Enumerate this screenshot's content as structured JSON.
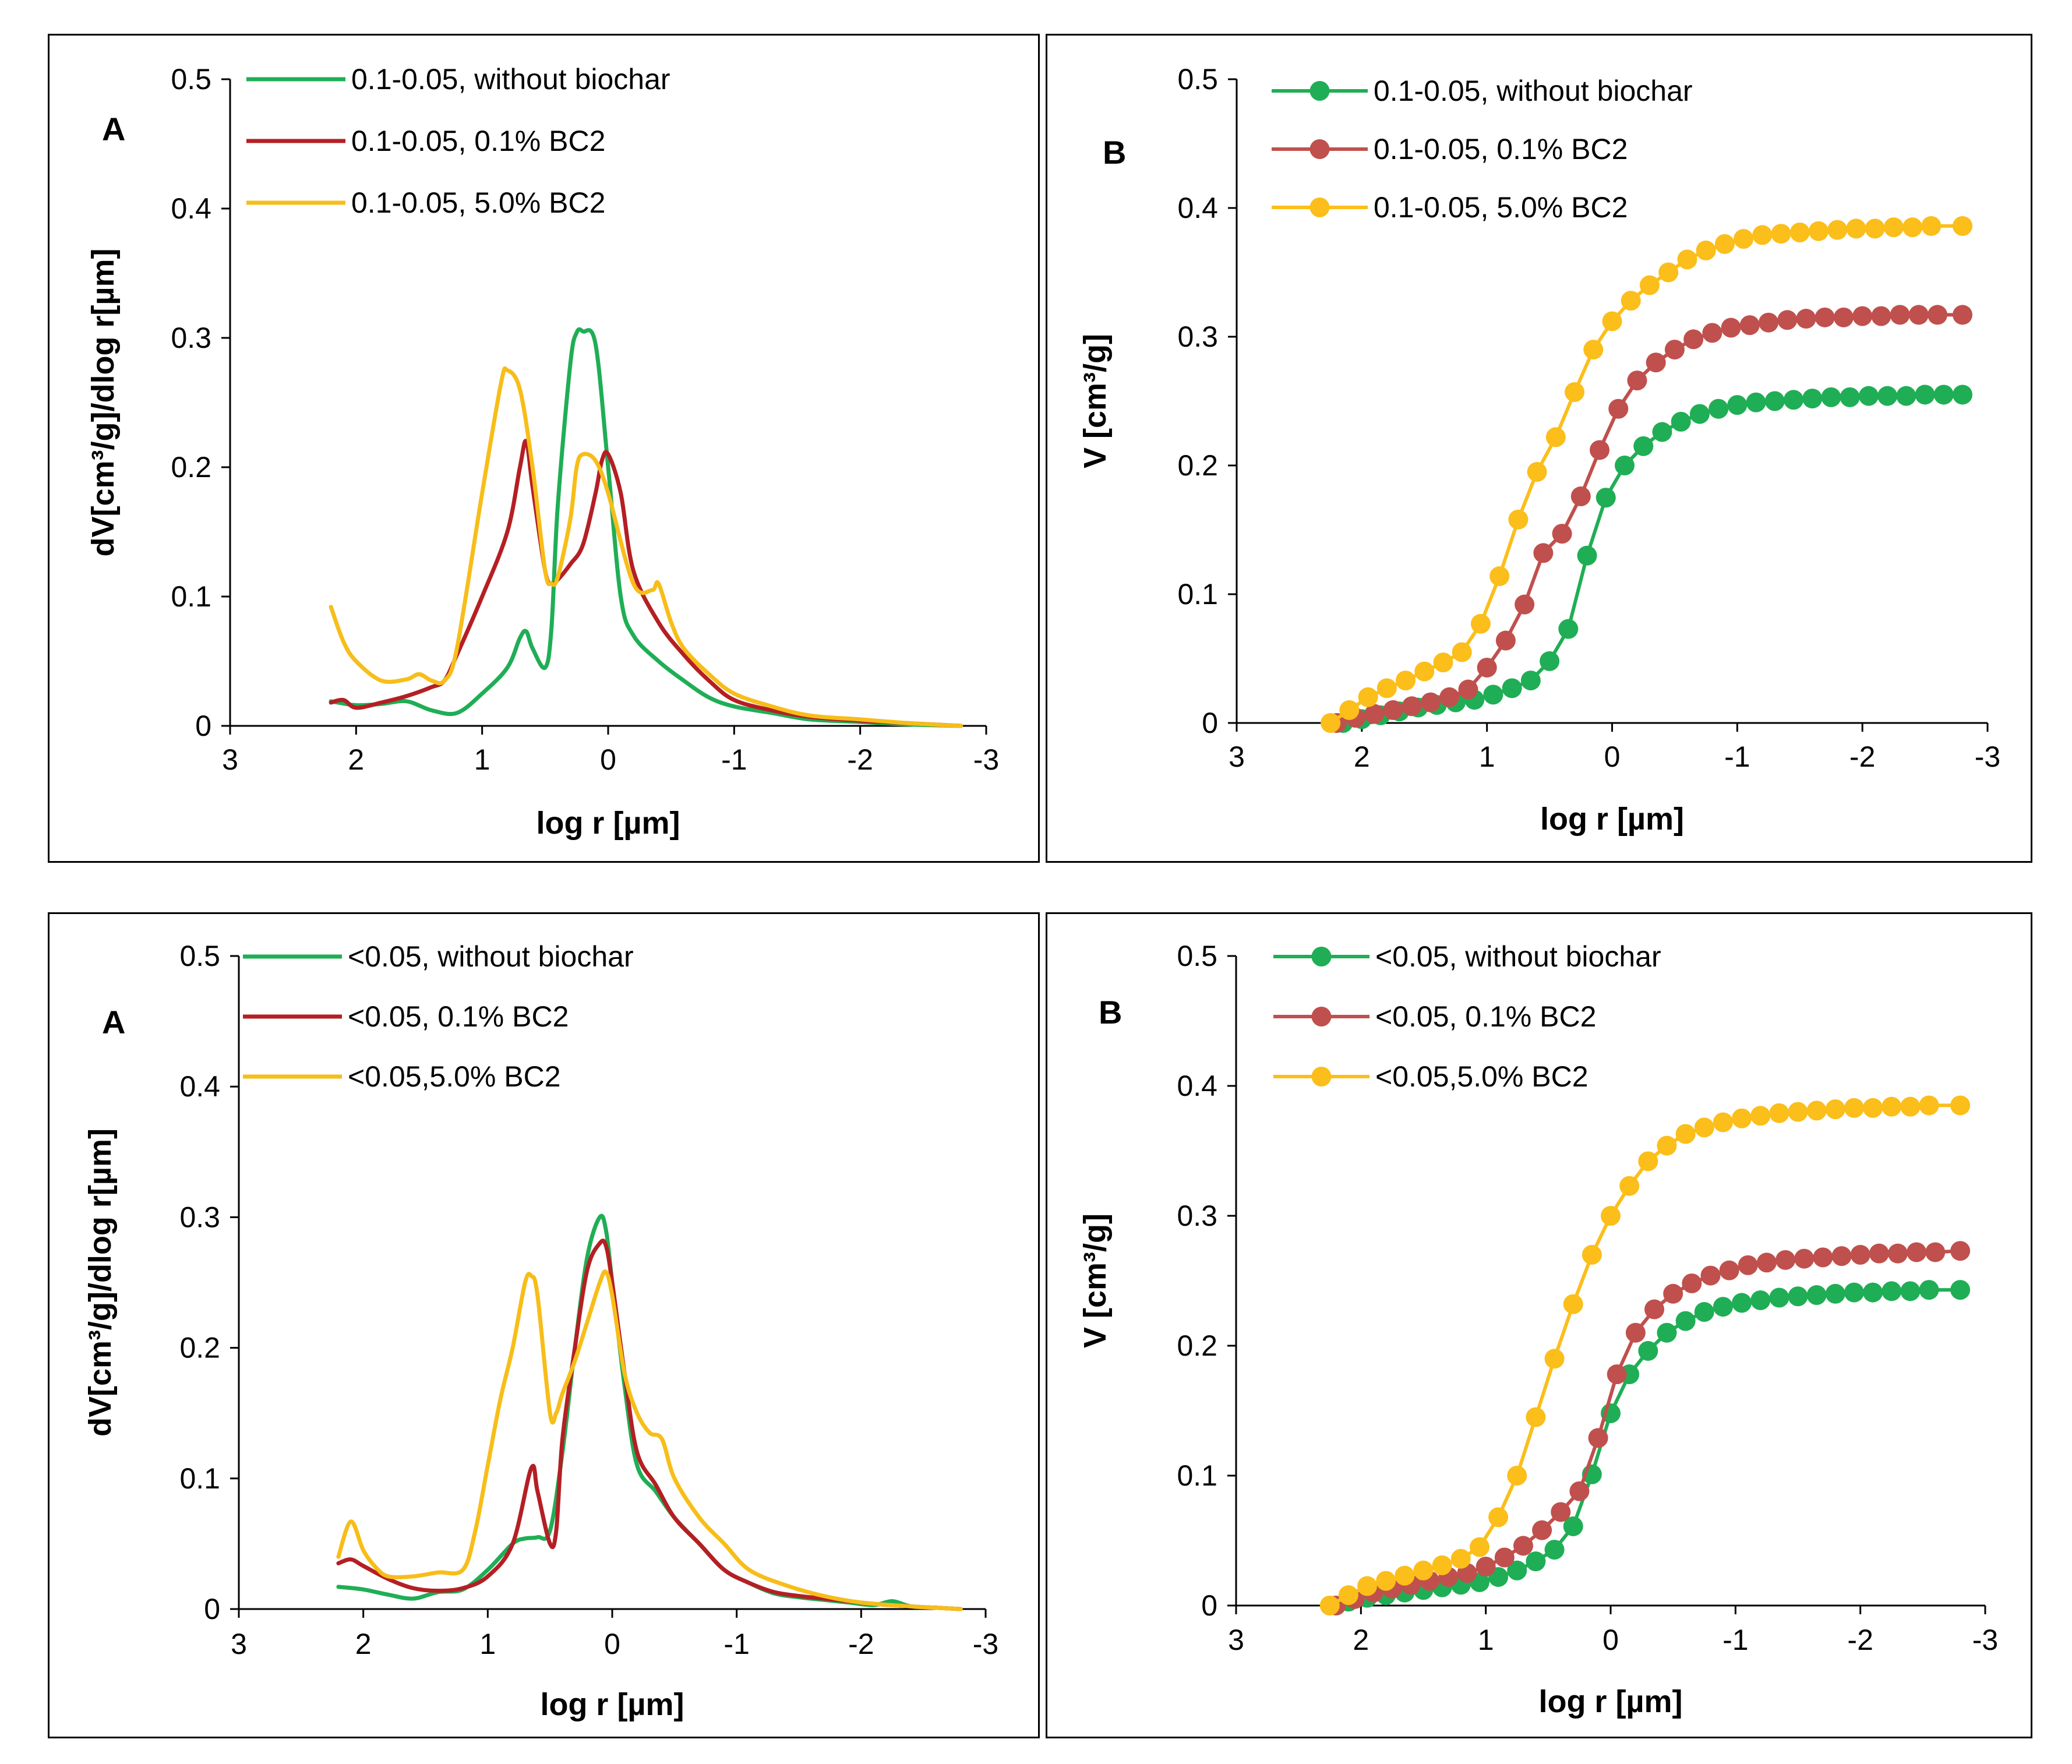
{
  "chart_data": [
    {
      "type": "line",
      "panel_letter": "A",
      "ylabel": "dV[cm³/g]/dlog r[µm]",
      "xlabel": "log r [µm]",
      "xlim": [
        3,
        -3
      ],
      "ylim": [
        0,
        0.5
      ],
      "xticks": [
        "3",
        "2",
        "1",
        "0",
        "-1",
        "-2",
        "-3"
      ],
      "yticks": [
        "0",
        "0.1",
        "0.2",
        "0.3",
        "0.4",
        "0.5"
      ],
      "markers": false,
      "series": [
        {
          "name": "0.1-0.05, without biochar",
          "color": "#1fae55",
          "x": [
            2.2,
            2.0,
            1.8,
            1.6,
            1.4,
            1.2,
            1.0,
            0.8,
            0.7,
            0.65,
            0.6,
            0.5,
            0.45,
            0.4,
            0.3,
            0.25,
            0.2,
            0.1,
            0.0,
            -0.1,
            -0.2,
            -0.4,
            -0.6,
            -0.8,
            -1.0,
            -1.3,
            -1.6,
            -2.0,
            -2.4,
            -2.8
          ],
          "y": [
            0.019,
            0.016,
            0.017,
            0.019,
            0.012,
            0.01,
            0.025,
            0.045,
            0.068,
            0.073,
            0.06,
            0.045,
            0.075,
            0.17,
            0.28,
            0.304,
            0.305,
            0.295,
            0.2,
            0.1,
            0.07,
            0.05,
            0.035,
            0.022,
            0.015,
            0.01,
            0.005,
            0.003,
            0.001,
            0
          ]
        },
        {
          "name": "0.1-0.05, 0.1% BC2",
          "color": "#b41f24",
          "x": [
            2.2,
            2.1,
            2.0,
            1.8,
            1.6,
            1.4,
            1.3,
            1.2,
            1.0,
            0.8,
            0.7,
            0.65,
            0.6,
            0.5,
            0.45,
            0.4,
            0.3,
            0.2,
            0.1,
            0.05,
            0.0,
            -0.1,
            -0.2,
            -0.4,
            -0.6,
            -0.8,
            -1.0,
            -1.3,
            -1.6,
            -2.0,
            -2.4,
            -2.8
          ],
          "y": [
            0.018,
            0.02,
            0.014,
            0.018,
            0.023,
            0.03,
            0.035,
            0.055,
            0.1,
            0.15,
            0.2,
            0.22,
            0.185,
            0.12,
            0.11,
            0.113,
            0.125,
            0.14,
            0.18,
            0.205,
            0.21,
            0.18,
            0.12,
            0.08,
            0.055,
            0.035,
            0.02,
            0.012,
            0.007,
            0.004,
            0.002,
            0
          ]
        },
        {
          "name": "0.1-0.05, 5.0% BC2",
          "color": "#f7bd19",
          "x": [
            2.2,
            2.1,
            2.0,
            1.8,
            1.6,
            1.5,
            1.4,
            1.3,
            1.2,
            1.0,
            0.85,
            0.8,
            0.7,
            0.6,
            0.5,
            0.45,
            0.4,
            0.3,
            0.25,
            0.2,
            0.1,
            0.0,
            -0.2,
            -0.35,
            -0.4,
            -0.5,
            -0.6,
            -0.8,
            -1.0,
            -1.3,
            -1.6,
            -2.0,
            -2.4,
            -2.8
          ],
          "y": [
            0.092,
            0.065,
            0.05,
            0.035,
            0.036,
            0.04,
            0.035,
            0.035,
            0.06,
            0.18,
            0.265,
            0.275,
            0.26,
            0.2,
            0.12,
            0.11,
            0.115,
            0.16,
            0.2,
            0.21,
            0.205,
            0.18,
            0.11,
            0.105,
            0.11,
            0.08,
            0.06,
            0.04,
            0.025,
            0.015,
            0.008,
            0.005,
            0.002,
            0
          ]
        }
      ]
    },
    {
      "type": "line",
      "panel_letter": "B",
      "ylabel": "V [cm³/g]",
      "xlabel": "log r [µm]",
      "xlim": [
        3,
        -3
      ],
      "ylim": [
        0,
        0.5
      ],
      "xticks": [
        "3",
        "2",
        "1",
        "0",
        "-1",
        "-2",
        "-3"
      ],
      "yticks": [
        "0",
        "0.1",
        "0.2",
        "0.3",
        "0.4",
        "0.5"
      ],
      "markers": true,
      "series": [
        {
          "name": "0.1-0.05, without biochar",
          "color": "#1fae55",
          "x": [
            2.15,
            2.0,
            1.85,
            1.7,
            1.55,
            1.4,
            1.25,
            1.1,
            0.95,
            0.8,
            0.65,
            0.5,
            0.35,
            0.2,
            0.05,
            -0.1,
            -0.25,
            -0.4,
            -0.55,
            -0.7,
            -0.85,
            -1.0,
            -1.15,
            -1.3,
            -1.45,
            -1.6,
            -1.75,
            -1.9,
            -2.05,
            -2.2,
            -2.35,
            -2.5,
            -2.65,
            -2.8
          ],
          "y": [
            0.0,
            0.003,
            0.006,
            0.009,
            0.012,
            0.014,
            0.016,
            0.018,
            0.022,
            0.027,
            0.033,
            0.048,
            0.073,
            0.13,
            0.175,
            0.2,
            0.215,
            0.226,
            0.234,
            0.24,
            0.244,
            0.247,
            0.249,
            0.25,
            0.251,
            0.252,
            0.253,
            0.253,
            0.254,
            0.254,
            0.254,
            0.255,
            0.255,
            0.255
          ]
        },
        {
          "name": "0.1-0.05, 0.1% BC2",
          "color": "#c0504d",
          "x": [
            2.2,
            2.05,
            1.9,
            1.75,
            1.6,
            1.45,
            1.3,
            1.15,
            1.0,
            0.85,
            0.7,
            0.55,
            0.4,
            0.25,
            0.1,
            -0.05,
            -0.2,
            -0.35,
            -0.5,
            -0.65,
            -0.8,
            -0.95,
            -1.1,
            -1.25,
            -1.4,
            -1.55,
            -1.7,
            -1.85,
            -2.0,
            -2.15,
            -2.3,
            -2.45,
            -2.6,
            -2.8
          ],
          "y": [
            0.0,
            0.004,
            0.007,
            0.01,
            0.013,
            0.016,
            0.02,
            0.026,
            0.043,
            0.064,
            0.092,
            0.132,
            0.147,
            0.176,
            0.212,
            0.244,
            0.266,
            0.28,
            0.29,
            0.298,
            0.303,
            0.307,
            0.309,
            0.311,
            0.313,
            0.314,
            0.315,
            0.315,
            0.316,
            0.316,
            0.317,
            0.317,
            0.317,
            0.317
          ]
        },
        {
          "name": "0.1-0.05, 5.0% BC2",
          "color": "#fbbe1a",
          "x": [
            2.25,
            2.1,
            1.95,
            1.8,
            1.65,
            1.5,
            1.35,
            1.2,
            1.05,
            0.9,
            0.75,
            0.6,
            0.45,
            0.3,
            0.15,
            0.0,
            -0.15,
            -0.3,
            -0.45,
            -0.6,
            -0.75,
            -0.9,
            -1.05,
            -1.2,
            -1.35,
            -1.5,
            -1.65,
            -1.8,
            -1.95,
            -2.1,
            -2.25,
            -2.4,
            -2.55,
            -2.8
          ],
          "y": [
            0.0,
            0.01,
            0.02,
            0.027,
            0.033,
            0.04,
            0.047,
            0.055,
            0.077,
            0.114,
            0.158,
            0.195,
            0.222,
            0.257,
            0.29,
            0.312,
            0.328,
            0.34,
            0.35,
            0.36,
            0.367,
            0.372,
            0.376,
            0.379,
            0.38,
            0.381,
            0.382,
            0.383,
            0.384,
            0.384,
            0.385,
            0.385,
            0.386,
            0.386
          ]
        }
      ]
    },
    {
      "type": "line",
      "panel_letter": "A",
      "ylabel": "dV[cm³/g]/dlog r[µm]",
      "xlabel": "log r [µm]",
      "xlim": [
        3,
        -3
      ],
      "ylim": [
        0,
        0.5
      ],
      "xticks": [
        "3",
        "2",
        "1",
        "0",
        "-1",
        "-2",
        "-3"
      ],
      "yticks": [
        "0",
        "0.1",
        "0.2",
        "0.3",
        "0.4",
        "0.5"
      ],
      "markers": false,
      "series": [
        {
          "name": "<0.05, without biochar",
          "color": "#1fae55",
          "x": [
            2.2,
            2.0,
            1.8,
            1.6,
            1.4,
            1.2,
            1.0,
            0.8,
            0.7,
            0.6,
            0.5,
            0.4,
            0.3,
            0.2,
            0.1,
            0.05,
            0.0,
            -0.1,
            -0.2,
            -0.35,
            -0.5,
            -0.7,
            -0.9,
            -1.1,
            -1.3,
            -1.5,
            -1.7,
            -1.9,
            -2.1,
            -2.25,
            -2.4,
            -2.6,
            -2.8
          ],
          "y": [
            0.017,
            0.015,
            0.011,
            0.008,
            0.013,
            0.015,
            0.03,
            0.05,
            0.054,
            0.055,
            0.06,
            0.12,
            0.2,
            0.27,
            0.3,
            0.29,
            0.25,
            0.17,
            0.11,
            0.09,
            0.07,
            0.05,
            0.03,
            0.02,
            0.012,
            0.009,
            0.007,
            0.005,
            0.003,
            0.006,
            0.002,
            0.001,
            0
          ]
        },
        {
          "name": "<0.05, 0.1% BC2",
          "color": "#b41f24",
          "x": [
            2.2,
            2.1,
            2.0,
            1.8,
            1.6,
            1.4,
            1.2,
            1.0,
            0.8,
            0.65,
            0.6,
            0.5,
            0.45,
            0.4,
            0.3,
            0.2,
            0.1,
            0.05,
            0.0,
            -0.1,
            -0.2,
            -0.35,
            -0.5,
            -0.7,
            -0.9,
            -1.1,
            -1.3,
            -1.5,
            -1.7,
            -1.9,
            -2.1,
            -2.4,
            -2.6,
            -2.8
          ],
          "y": [
            0.035,
            0.038,
            0.033,
            0.023,
            0.016,
            0.014,
            0.016,
            0.025,
            0.05,
            0.108,
            0.09,
            0.05,
            0.06,
            0.13,
            0.2,
            0.26,
            0.28,
            0.278,
            0.25,
            0.18,
            0.12,
            0.095,
            0.07,
            0.05,
            0.03,
            0.02,
            0.013,
            0.01,
            0.008,
            0.006,
            0.004,
            0.002,
            0.001,
            0
          ]
        },
        {
          "name": "<0.05,5.0% BC2",
          "color": "#f7bd19",
          "x": [
            2.2,
            2.1,
            2.0,
            1.9,
            1.8,
            1.6,
            1.4,
            1.2,
            1.1,
            1.0,
            0.9,
            0.8,
            0.7,
            0.65,
            0.6,
            0.5,
            0.45,
            0.4,
            0.3,
            0.2,
            0.1,
            0.05,
            0.0,
            -0.1,
            -0.2,
            -0.3,
            -0.4,
            -0.5,
            -0.7,
            -0.9,
            -1.1,
            -1.4,
            -1.7,
            -2.0,
            -2.4,
            -2.8
          ],
          "y": [
            0.04,
            0.067,
            0.045,
            0.032,
            0.025,
            0.025,
            0.028,
            0.03,
            0.06,
            0.11,
            0.16,
            0.2,
            0.25,
            0.255,
            0.24,
            0.15,
            0.15,
            0.165,
            0.19,
            0.22,
            0.25,
            0.258,
            0.24,
            0.18,
            0.15,
            0.135,
            0.13,
            0.1,
            0.07,
            0.05,
            0.03,
            0.018,
            0.01,
            0.005,
            0.002,
            0
          ]
        }
      ]
    },
    {
      "type": "line",
      "panel_letter": "B",
      "ylabel": "V [cm³/g]",
      "xlabel": "log r [µm]",
      "xlim": [
        3,
        -3
      ],
      "ylim": [
        0,
        0.5
      ],
      "xticks": [
        "3",
        "2",
        "1",
        "0",
        "-1",
        "-2",
        "-3"
      ],
      "yticks": [
        "0",
        "0.1",
        "0.2",
        "0.3",
        "0.4",
        "0.5"
      ],
      "markers": true,
      "series": [
        {
          "name": "<0.05, without biochar",
          "color": "#1fae55",
          "x": [
            2.1,
            1.95,
            1.8,
            1.65,
            1.5,
            1.35,
            1.2,
            1.05,
            0.9,
            0.75,
            0.6,
            0.45,
            0.3,
            0.15,
            0.0,
            -0.15,
            -0.3,
            -0.45,
            -0.6,
            -0.75,
            -0.9,
            -1.05,
            -1.2,
            -1.35,
            -1.5,
            -1.65,
            -1.8,
            -1.95,
            -2.1,
            -2.25,
            -2.4,
            -2.55,
            -2.8
          ],
          "y": [
            0.003,
            0.006,
            0.008,
            0.01,
            0.012,
            0.014,
            0.016,
            0.018,
            0.022,
            0.027,
            0.034,
            0.043,
            0.061,
            0.101,
            0.148,
            0.178,
            0.196,
            0.21,
            0.219,
            0.226,
            0.23,
            0.233,
            0.235,
            0.237,
            0.238,
            0.239,
            0.24,
            0.241,
            0.241,
            0.242,
            0.242,
            0.243,
            0.243
          ]
        },
        {
          "name": "<0.05, 0.1% BC2",
          "color": "#c0504d",
          "x": [
            2.2,
            2.05,
            1.9,
            1.75,
            1.6,
            1.45,
            1.3,
            1.15,
            1.0,
            0.85,
            0.7,
            0.55,
            0.4,
            0.25,
            0.1,
            -0.05,
            -0.2,
            -0.35,
            -0.5,
            -0.65,
            -0.8,
            -0.95,
            -1.1,
            -1.25,
            -1.4,
            -1.55,
            -1.7,
            -1.85,
            -2.0,
            -2.15,
            -2.3,
            -2.45,
            -2.6,
            -2.8
          ],
          "y": [
            0.0,
            0.005,
            0.01,
            0.013,
            0.016,
            0.019,
            0.022,
            0.025,
            0.03,
            0.037,
            0.046,
            0.058,
            0.072,
            0.088,
            0.129,
            0.178,
            0.21,
            0.228,
            0.24,
            0.248,
            0.254,
            0.258,
            0.262,
            0.264,
            0.266,
            0.267,
            0.268,
            0.269,
            0.27,
            0.271,
            0.271,
            0.272,
            0.272,
            0.273
          ]
        },
        {
          "name": "<0.05,5.0% BC2",
          "color": "#fbbe1a",
          "x": [
            2.25,
            2.1,
            1.95,
            1.8,
            1.65,
            1.5,
            1.35,
            1.2,
            1.05,
            0.9,
            0.75,
            0.6,
            0.45,
            0.3,
            0.15,
            0.0,
            -0.15,
            -0.3,
            -0.45,
            -0.6,
            -0.75,
            -0.9,
            -1.05,
            -1.2,
            -1.35,
            -1.5,
            -1.65,
            -1.8,
            -1.95,
            -2.1,
            -2.25,
            -2.4,
            -2.55,
            -2.8
          ],
          "y": [
            0.0,
            0.008,
            0.015,
            0.019,
            0.023,
            0.027,
            0.031,
            0.036,
            0.045,
            0.068,
            0.1,
            0.145,
            0.19,
            0.232,
            0.27,
            0.3,
            0.323,
            0.342,
            0.354,
            0.363,
            0.368,
            0.372,
            0.375,
            0.377,
            0.379,
            0.38,
            0.381,
            0.382,
            0.383,
            0.383,
            0.384,
            0.384,
            0.385,
            0.385
          ]
        }
      ]
    }
  ]
}
